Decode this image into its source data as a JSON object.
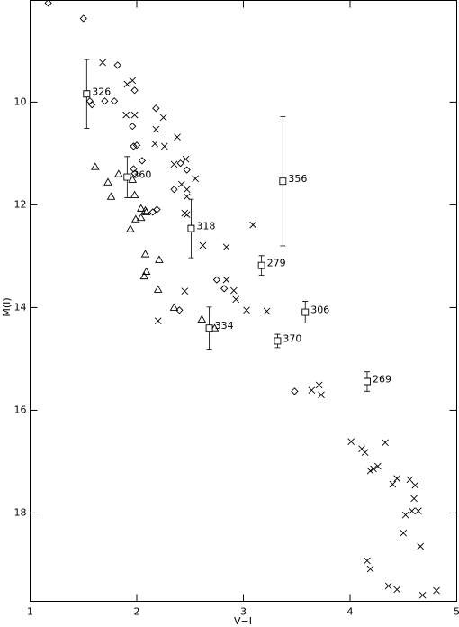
{
  "chart_data": {
    "type": "scatter",
    "x_label": "V−I",
    "y_label": "M(I)",
    "xlim": [
      1,
      5
    ],
    "xticks": [
      1,
      2,
      3,
      4,
      5
    ],
    "ylim": [
      8.02,
      19.72
    ],
    "y_inverted": true,
    "yticks": [
      10,
      12,
      14,
      16,
      18
    ],
    "color": "#000000",
    "series": [
      {
        "marker": "cross",
        "x": [
          1.68,
          1.96,
          1.91,
          1.98,
          1.9,
          2.25,
          2.18,
          2.26,
          2.17,
          2.38,
          2.46,
          2.35,
          2.55,
          2.42,
          2.47,
          2.47,
          2.45,
          2.47,
          2.62,
          2.45,
          2.2,
          3.09,
          2.84,
          2.84,
          2.91,
          2.93,
          3.03,
          3.22,
          3.64,
          3.71,
          3.73,
          4.01,
          4.11,
          4.14,
          4.22,
          4.19,
          4.26,
          4.33,
          4.4,
          4.44,
          4.52,
          4.56,
          4.58,
          4.61,
          4.6,
          4.64,
          4.66,
          4.5,
          4.16,
          4.19,
          4.36,
          4.44,
          4.68,
          4.81
        ],
        "y": [
          9.23,
          9.58,
          9.65,
          10.25,
          10.25,
          10.3,
          10.53,
          10.86,
          10.81,
          10.68,
          11.11,
          11.21,
          11.49,
          11.6,
          11.7,
          11.84,
          12.16,
          12.19,
          12.79,
          13.68,
          14.26,
          12.39,
          12.82,
          13.46,
          13.67,
          13.84,
          14.05,
          14.07,
          15.61,
          15.51,
          15.7,
          16.61,
          16.75,
          16.82,
          17.14,
          17.18,
          17.09,
          16.63,
          17.44,
          17.33,
          18.04,
          17.35,
          17.96,
          17.46,
          17.72,
          17.96,
          18.65,
          18.39,
          18.93,
          19.09,
          19.42,
          19.49,
          19.6,
          19.51
        ]
      },
      {
        "marker": "diamond",
        "x": [
          1.17,
          1.5,
          1.82,
          1.98,
          1.56,
          1.58,
          1.7,
          1.79,
          2.18,
          1.96,
          1.97,
          2.0,
          2.05,
          1.97,
          1.98,
          2.47,
          2.41,
          2.35,
          2.19,
          2.15,
          2.75,
          2.82,
          2.4,
          3.48
        ],
        "y": [
          8.07,
          8.37,
          9.28,
          9.77,
          9.98,
          10.05,
          9.98,
          9.98,
          10.12,
          10.47,
          10.86,
          10.84,
          11.14,
          11.3,
          11.39,
          11.32,
          11.19,
          11.7,
          12.09,
          12.14,
          13.46,
          13.63,
          14.05,
          15.63
        ]
      },
      {
        "marker": "triangle",
        "x": [
          1.61,
          1.83,
          1.73,
          1.76,
          1.96,
          1.98,
          1.99,
          1.94,
          2.04,
          2.04,
          2.08,
          2.09,
          2.08,
          2.21,
          2.09,
          2.07,
          2.2,
          2.35,
          2.61,
          2.73
        ],
        "y": [
          11.26,
          11.4,
          11.56,
          11.84,
          11.51,
          11.81,
          12.28,
          12.47,
          12.25,
          12.07,
          12.11,
          12.14,
          12.96,
          13.07,
          13.3,
          13.39,
          13.65,
          14.0,
          14.23,
          14.4
        ]
      },
      {
        "marker": "square",
        "x": [
          1.53,
          1.91,
          2.51,
          3.37,
          3.17,
          3.58,
          3.32,
          2.68,
          4.16
        ],
        "y": [
          9.84,
          11.46,
          12.46,
          11.54,
          13.18,
          14.09,
          14.65,
          14.4,
          15.44
        ],
        "yerr": [
          0.67,
          0.4,
          0.57,
          1.26,
          0.19,
          0.21,
          0.13,
          0.41,
          0.19
        ],
        "labels": [
          "326",
          "360",
          "318",
          "356",
          "279",
          "306",
          "370",
          "334",
          "269"
        ]
      }
    ]
  }
}
